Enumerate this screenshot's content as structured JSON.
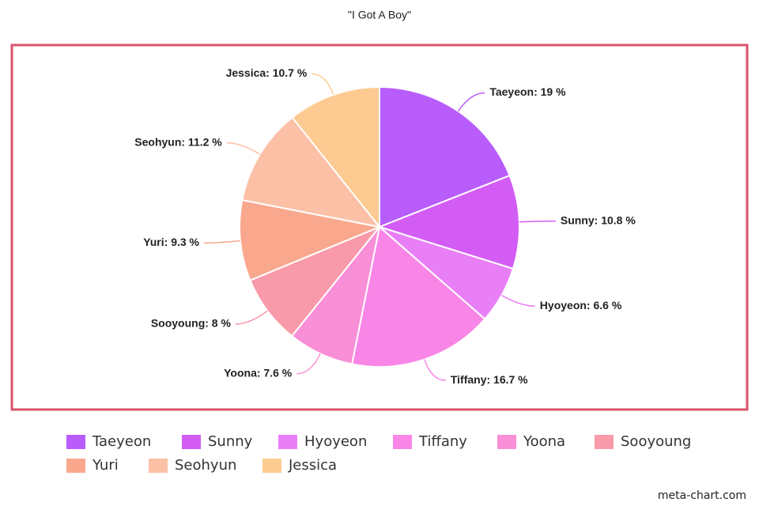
{
  "chart_data": {
    "type": "pie",
    "title": "\"I Got A Boy\"",
    "categories": [
      "Taeyeon",
      "Sunny",
      "Hyoyeon",
      "Tiffany",
      "Yoona",
      "Sooyoung",
      "Yuri",
      "Seohyun",
      "Jessica"
    ],
    "values": [
      19,
      10.8,
      6.6,
      16.7,
      7.6,
      8,
      9.3,
      11.2,
      10.7
    ],
    "value_labels": [
      "Taeyeon: 19 %",
      "Sunny: 10.8 %",
      "Hyoyeon: 6.6 %",
      "Tiffany: 16.7 %",
      "Yoona: 7.6 %",
      "Sooyoung: 8 %",
      "Yuri: 9.3 %",
      "Seohyun: 11.2 %",
      "Jessica: 10.7 %"
    ],
    "colors": [
      "#b95cfc",
      "#d35cf5",
      "#e97ff7",
      "#f985e6",
      "#f98fd6",
      "#f99aaa",
      "#f9a88e",
      "#fbc0a5",
      "#fdcb91"
    ],
    "watermark": "meta-chart.com"
  }
}
